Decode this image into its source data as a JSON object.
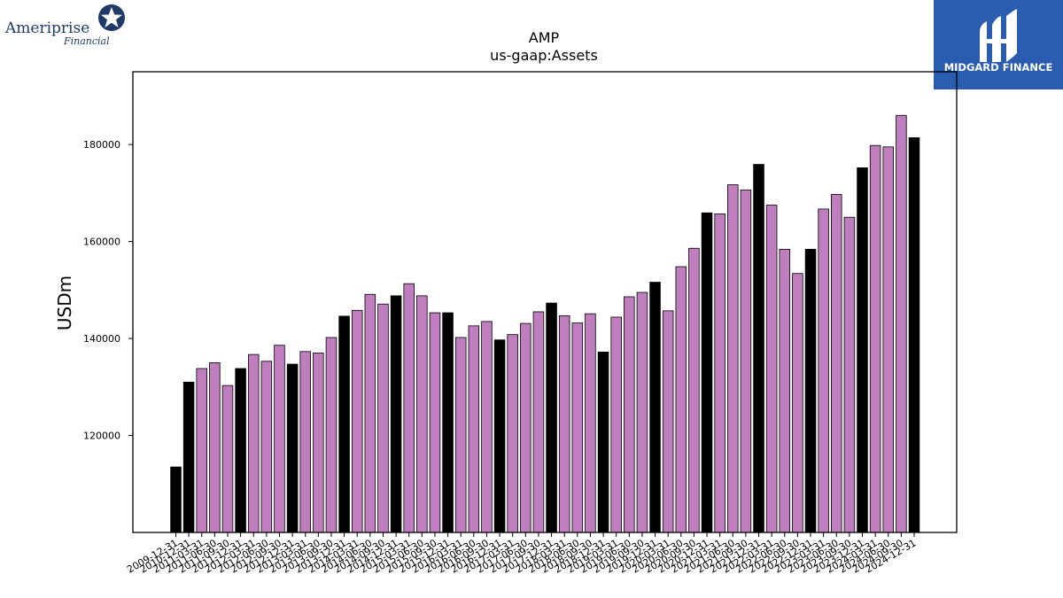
{
  "logos": {
    "left_brand": "Ameriprise",
    "left_sub": "Financial",
    "right_brand": "MIDGARD FINANCE"
  },
  "colors": {
    "year_end_bar": "#000000",
    "quarter_bar": "#bf7fbf",
    "right_logo_bg": "#2a5db0"
  },
  "chart_data": {
    "type": "bar",
    "title": "AMP",
    "subtitle": "us-gaap:Assets",
    "xlabel": "",
    "ylabel": "USDm",
    "ylim": [
      100000,
      195000
    ],
    "yticks": [
      120000,
      140000,
      160000,
      180000
    ],
    "grid": false,
    "categories": [
      "2009-12-31",
      "2010-12-31",
      "2011-03-31",
      "2011-06-30",
      "2011-09-30",
      "2011-12-31",
      "2012-03-31",
      "2012-06-30",
      "2012-09-30",
      "2012-12-31",
      "2013-03-31",
      "2013-06-30",
      "2013-09-30",
      "2013-12-31",
      "2014-03-31",
      "2014-06-30",
      "2014-09-30",
      "2014-12-31",
      "2015-03-31",
      "2015-06-30",
      "2015-09-30",
      "2015-12-31",
      "2016-03-31",
      "2016-06-30",
      "2016-09-30",
      "2016-12-31",
      "2017-03-31",
      "2017-06-30",
      "2017-09-30",
      "2017-12-31",
      "2018-03-31",
      "2018-06-30",
      "2018-09-30",
      "2018-12-31",
      "2019-03-31",
      "2019-06-30",
      "2019-09-30",
      "2019-12-31",
      "2020-03-31",
      "2020-06-30",
      "2020-09-30",
      "2020-12-31",
      "2021-03-31",
      "2021-06-30",
      "2021-09-30",
      "2021-12-31",
      "2022-03-31",
      "2022-06-30",
      "2022-09-30",
      "2022-12-31",
      "2023-03-31",
      "2023-06-30",
      "2023-09-30",
      "2023-12-31",
      "2024-03-31",
      "2024-06-30",
      "2024-09-30",
      "2024-12-31"
    ],
    "values": [
      113500,
      131000,
      133800,
      135000,
      130300,
      133800,
      136700,
      135300,
      138600,
      134700,
      137300,
      137000,
      140200,
      144600,
      145800,
      149100,
      147100,
      148800,
      151300,
      148800,
      145300,
      145300,
      140200,
      142600,
      143500,
      139700,
      140800,
      143100,
      145500,
      147300,
      144700,
      143200,
      145100,
      137200,
      144400,
      148600,
      149500,
      151600,
      145700,
      154800,
      158600,
      165900,
      165700,
      171700,
      170600,
      175900,
      167500,
      158400,
      153400,
      158400,
      166700,
      169700,
      165000,
      175200,
      179800,
      179500,
      186000,
      181400
    ],
    "year_end": [
      true,
      true,
      false,
      false,
      false,
      true,
      false,
      false,
      false,
      true,
      false,
      false,
      false,
      true,
      false,
      false,
      false,
      true,
      false,
      false,
      false,
      true,
      false,
      false,
      false,
      true,
      false,
      false,
      false,
      true,
      false,
      false,
      false,
      true,
      false,
      false,
      false,
      true,
      false,
      false,
      false,
      true,
      false,
      false,
      false,
      true,
      false,
      false,
      false,
      true,
      false,
      false,
      false,
      true,
      false,
      false,
      false,
      true
    ]
  }
}
